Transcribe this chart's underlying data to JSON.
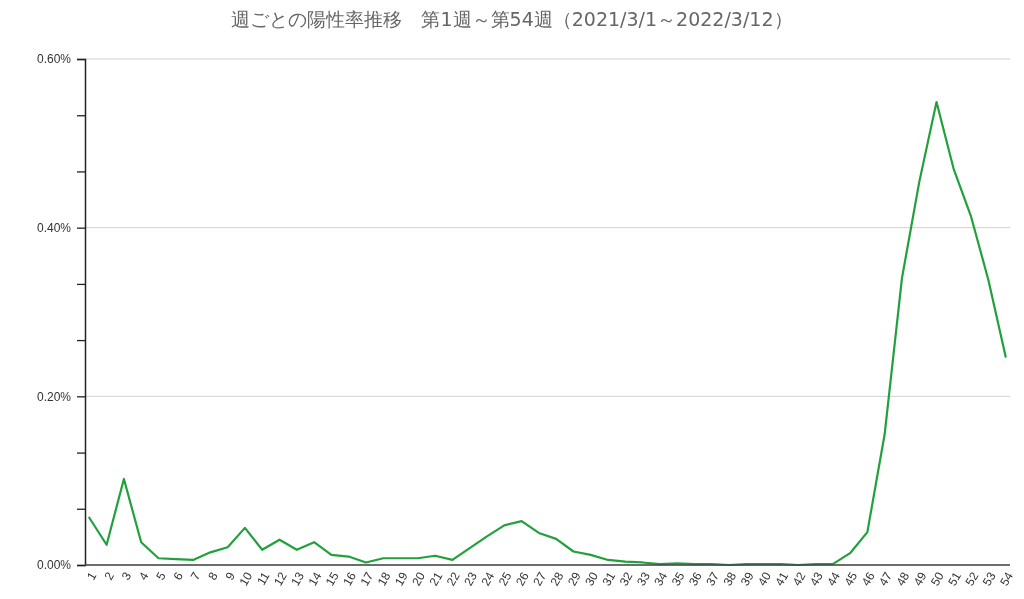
{
  "chart_data": {
    "type": "line",
    "title": "週ごとの陽性率推移　第1週～第54週（2021/3/1～2022/3/12）",
    "categories": [
      "1",
      "2",
      "3",
      "4",
      "5",
      "6",
      "7",
      "8",
      "9",
      "10",
      "11",
      "12",
      "13",
      "14",
      "15",
      "16",
      "17",
      "18",
      "19",
      "20",
      "21",
      "22",
      "23",
      "24",
      "25",
      "26",
      "27",
      "28",
      "29",
      "30",
      "31",
      "32",
      "33",
      "34",
      "35",
      "36",
      "37",
      "38",
      "39",
      "40",
      "41",
      "42",
      "43",
      "44",
      "45",
      "46",
      "47",
      "48",
      "49",
      "50",
      "51",
      "52",
      "53",
      "54"
    ],
    "series": [
      {
        "color": "#22a03c",
        "values": [
          0.056,
          0.024,
          0.102,
          0.027,
          0.008,
          0.007,
          0.006,
          0.015,
          0.021,
          0.044,
          0.018,
          0.03,
          0.018,
          0.027,
          0.012,
          0.01,
          0.003,
          0.008,
          0.008,
          0.008,
          0.011,
          0.006,
          0.02,
          0.034,
          0.047,
          0.052,
          0.038,
          0.031,
          0.016,
          0.012,
          0.006,
          0.004,
          0.003,
          0.001,
          0.002,
          0.001,
          0.001,
          0.0,
          0.001,
          0.001,
          0.001,
          0.0,
          0.001,
          0.001,
          0.014,
          0.039,
          0.155,
          0.34,
          0.454,
          0.549,
          0.469,
          0.413,
          0.338,
          0.247
        ]
      }
    ],
    "ylim": [
      0,
      0.6
    ],
    "yticks": [
      {
        "value": 0,
        "label": "0.00%"
      },
      {
        "value": 0.0667,
        "label": null
      },
      {
        "value": 0.1333,
        "label": null
      },
      {
        "value": 0.2,
        "label": "0.20%"
      },
      {
        "value": 0.2667,
        "label": null
      },
      {
        "value": 0.3333,
        "label": null
      },
      {
        "value": 0.4,
        "label": "0.40%"
      },
      {
        "value": 0.4667,
        "label": null
      },
      {
        "value": 0.5333,
        "label": null
      },
      {
        "value": 0.6,
        "label": "0.60%"
      }
    ],
    "grid": "y",
    "marker": "none",
    "line_style": "solid"
  }
}
